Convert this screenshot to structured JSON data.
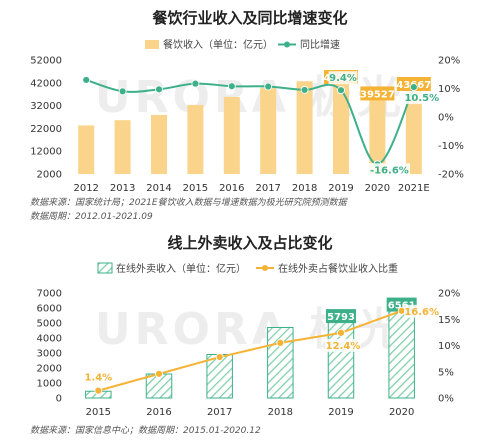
{
  "chart_data": [
    {
      "type": "bar",
      "title": "餐饮行业收入及同比增速变化",
      "categories": [
        "2012",
        "2013",
        "2014",
        "2015",
        "2016",
        "2017",
        "2018",
        "2019",
        "2020",
        "2021E"
      ],
      "series": [
        {
          "name": "餐饮收入（单位：亿元）",
          "type": "bar",
          "axis": "left",
          "color": "#FAD48A",
          "values": [
            23300,
            25600,
            27900,
            32300,
            35800,
            39600,
            42700,
            46721,
            39527,
            43667
          ]
        },
        {
          "name": "同比增速",
          "type": "line",
          "axis": "right",
          "color": "#3DB08A",
          "values": [
            13.0,
            9.0,
            9.7,
            11.7,
            10.8,
            10.7,
            9.5,
            9.4,
            -16.6,
            10.5
          ]
        }
      ],
      "bar_labels": {
        "2019": "46721",
        "2020": "39527",
        "2021E": "43667"
      },
      "line_labels": {
        "2019": "9.4%",
        "2020": "-16.6%",
        "2021E": "10.5%"
      },
      "left_ticks": [
        "52000",
        "42000",
        "32000",
        "22000",
        "12000",
        "2000"
      ],
      "right_ticks": [
        "20%",
        "10%",
        "0%",
        "-10%",
        "-20%"
      ],
      "ylim_left": [
        2000,
        52000
      ],
      "ylim_right": [
        -20,
        20
      ],
      "source_lines": [
        "数据来源：国家统计局；2021E餐饮收入数据与增速数据为极光研究院预测数据",
        "数据周期：2012.01-2021.09"
      ]
    },
    {
      "type": "bar",
      "title": "线上外卖收入及占比变化",
      "categories": [
        "2015",
        "2016",
        "2017",
        "2018",
        "2019",
        "2020"
      ],
      "series": [
        {
          "name": "在线外卖收入（单位：亿元）",
          "type": "bar",
          "axis": "left",
          "color": "#3DB08A",
          "values": [
            450,
            1600,
            2900,
            4700,
            5793,
            6561
          ]
        },
        {
          "name": "在线外卖占餐饮业收入比重",
          "type": "line",
          "axis": "right",
          "color": "#F5B335",
          "values": [
            1.4,
            4.6,
            7.8,
            10.5,
            12.4,
            16.6
          ]
        }
      ],
      "bar_labels": {
        "2019": "5793",
        "2020": "6561"
      },
      "line_labels": {
        "2015": "1.4%",
        "2019": "12.4%",
        "2020": "16.6%"
      },
      "left_ticks": [
        "7000",
        "6000",
        "5000",
        "4000",
        "3000",
        "2000",
        "1000",
        "0"
      ],
      "right_ticks": [
        "20%",
        "15%",
        "10%",
        "5%",
        "0%"
      ],
      "ylim_left": [
        0,
        7000
      ],
      "ylim_right": [
        0,
        20
      ],
      "source_lines": [
        "数据来源：国家信息中心；数据周期：2015.01-2020.12"
      ]
    }
  ],
  "watermark": "URORA 极光"
}
